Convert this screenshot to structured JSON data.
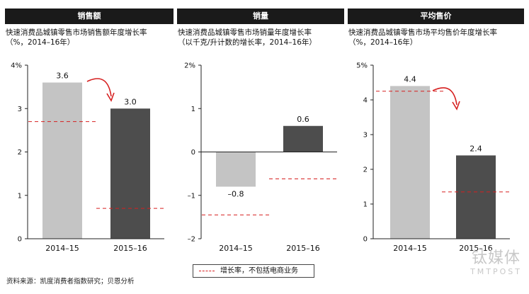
{
  "chart_data": [
    {
      "type": "bar",
      "header": "销售额",
      "title": "快速消费品城镇零售市场销售额年度增长率",
      "subtitle": "（%，2014–16年）",
      "categories": [
        "2014–15",
        "2015–16"
      ],
      "values": [
        3.6,
        3.0
      ],
      "value_labels": [
        "3.6",
        "3.0"
      ],
      "reference_values": [
        2.7,
        0.7
      ],
      "reference_name": "增长率，不包括电商业务",
      "ylim": [
        0,
        4
      ],
      "yticks": [
        0,
        1,
        2,
        3,
        4
      ],
      "ytick_labels": [
        "0",
        "1",
        "2",
        "3",
        "4%"
      ],
      "bar_colors": [
        "#c4c4c4",
        "#4d4d4d"
      ],
      "decline_arrow": true
    },
    {
      "type": "bar",
      "header": "销量",
      "title": "快速消费品城镇零售市场销量年度增长率",
      "subtitle": "（以千克/升计数的增长率，2014–16年）",
      "categories": [
        "2014–15",
        "2015–16"
      ],
      "values": [
        -0.8,
        0.6
      ],
      "value_labels": [
        "–0.8",
        "0.6"
      ],
      "reference_values": [
        -1.45,
        -0.62
      ],
      "reference_name": "增长率，不包括电商业务",
      "ylim": [
        -2,
        2
      ],
      "yticks": [
        -2,
        -1,
        0,
        1,
        2
      ],
      "ytick_labels": [
        "–2",
        "–1",
        "0",
        "1",
        "2%"
      ],
      "bar_colors": [
        "#c4c4c4",
        "#4d4d4d"
      ],
      "decline_arrow": false
    },
    {
      "type": "bar",
      "header": "平均售价",
      "title": "快速消费品城镇零售市场平均售价年度增长率",
      "subtitle": "（%，2014–16年）",
      "categories": [
        "2014–15",
        "2015–16"
      ],
      "values": [
        4.4,
        2.4
      ],
      "value_labels": [
        "4.4",
        "2.4"
      ],
      "reference_values": [
        4.25,
        1.35
      ],
      "reference_name": "增长率，不包括电商业务",
      "ylim": [
        0,
        5
      ],
      "yticks": [
        0,
        1,
        2,
        3,
        4,
        5
      ],
      "ytick_labels": [
        "0",
        "1",
        "2",
        "3",
        "4",
        "5%"
      ],
      "bar_colors": [
        "#c4c4c4",
        "#4d4d4d"
      ],
      "decline_arrow": true
    }
  ],
  "legend": {
    "label": "增长率，不包括电商业务",
    "color": "#d62020"
  },
  "source": "资料来源：凯度消费者指数研究；贝恩分析",
  "watermark": {
    "cn": "钛媒体",
    "en": "TMTPOST"
  },
  "colors": {
    "header_bg": "#1a1a1a",
    "reference_line": "#d62020",
    "arrow": "#d62020"
  }
}
